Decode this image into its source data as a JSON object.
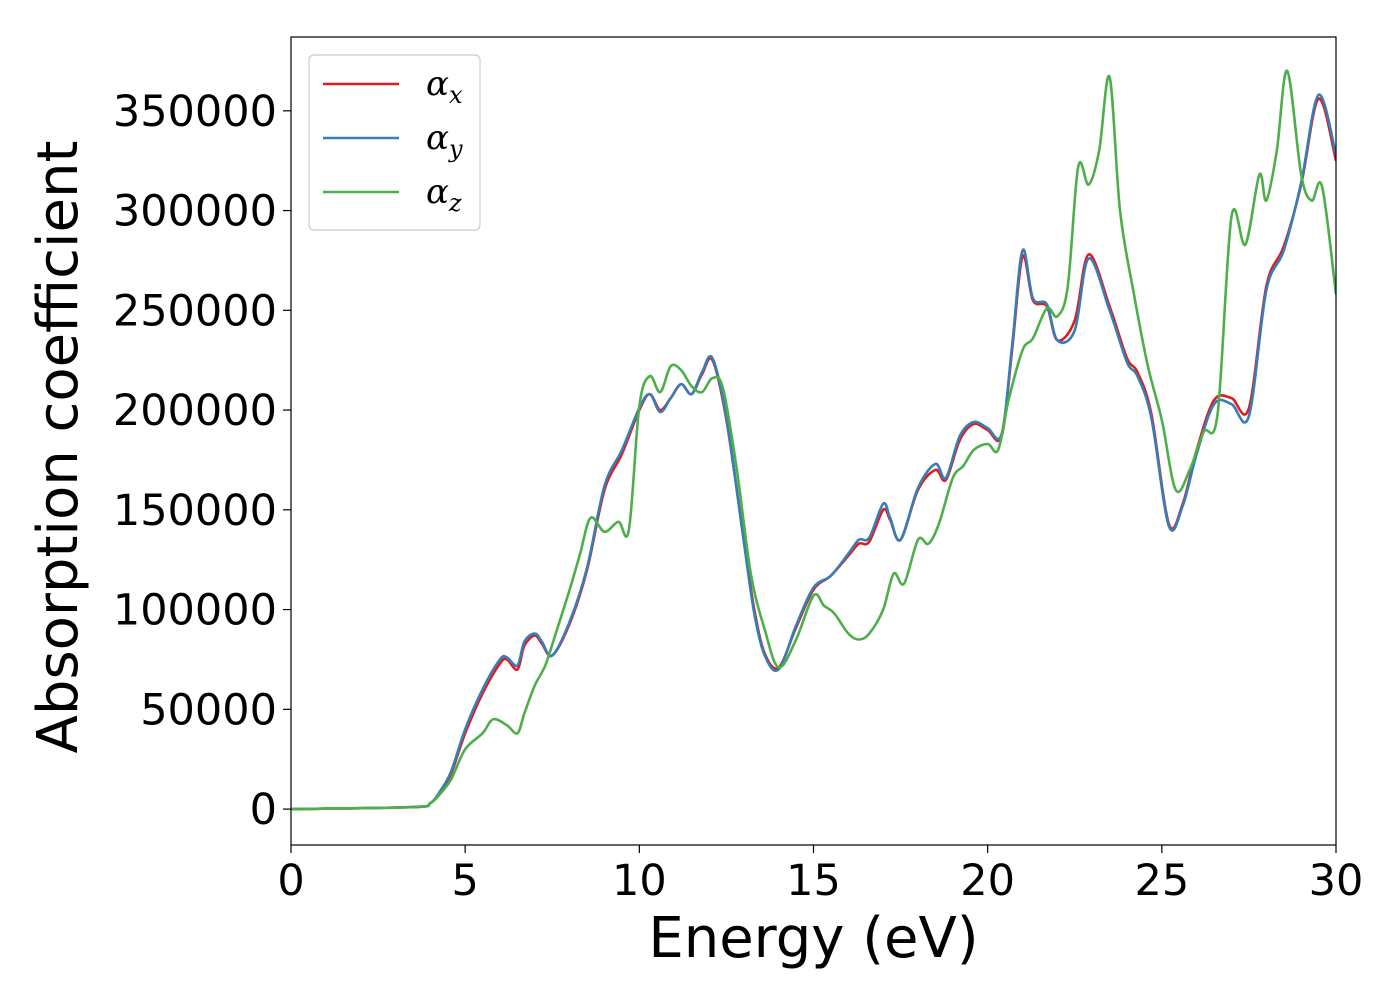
{
  "chart_data": {
    "type": "line",
    "title": "",
    "xlabel": "Energy (eV)",
    "ylabel": "Absorption coefficient",
    "xlim": [
      0,
      30
    ],
    "ylim": [
      -18000,
      387000
    ],
    "xticks": [
      0,
      5,
      10,
      15,
      20,
      25,
      30
    ],
    "xtick_labels": [
      "0",
      "5",
      "10",
      "15",
      "20",
      "25",
      "30"
    ],
    "yticks": [
      0,
      50000,
      100000,
      150000,
      200000,
      250000,
      300000,
      350000
    ],
    "ytick_labels": [
      "0",
      "50000",
      "100000",
      "150000",
      "200000",
      "250000",
      "300000",
      "350000"
    ],
    "grid": false,
    "legend_position": "top-left",
    "series": [
      {
        "name": "α_x",
        "label_base": "α",
        "label_sub": "x",
        "color": "#e41a1c",
        "x": [
          0,
          3.5,
          4.0,
          4.3,
          4.6,
          5.0,
          5.5,
          6.0,
          6.2,
          6.5,
          6.7,
          7.0,
          7.2,
          7.5,
          8.0,
          8.5,
          9.0,
          9.5,
          10.0,
          10.3,
          10.6,
          10.9,
          11.2,
          11.5,
          11.8,
          12.1,
          12.5,
          13.0,
          13.3,
          13.6,
          14.0,
          14.5,
          15.0,
          15.5,
          16.0,
          16.3,
          16.6,
          17.0,
          17.2,
          17.5,
          18.0,
          18.5,
          18.8,
          19.2,
          19.6,
          20.0,
          20.4,
          20.7,
          21.0,
          21.3,
          21.7,
          22.0,
          22.5,
          22.9,
          23.5,
          24.0,
          24.3,
          24.7,
          25.2,
          25.6,
          26.0,
          26.5,
          27.0,
          27.5,
          28.0,
          28.5,
          29.0,
          29.5,
          30.0
        ],
        "y": [
          0,
          1000,
          3000,
          9000,
          18000,
          38000,
          58000,
          73000,
          75000,
          70000,
          82000,
          87000,
          83000,
          77000,
          93000,
          120000,
          160000,
          178000,
          200000,
          208000,
          200000,
          206000,
          213000,
          208000,
          218000,
          225000,
          195000,
          135000,
          100000,
          78000,
          71000,
          91000,
          110000,
          117000,
          127000,
          133000,
          134000,
          150000,
          145000,
          135000,
          160000,
          170000,
          165000,
          185000,
          193000,
          190000,
          187000,
          230000,
          277000,
          255000,
          252000,
          235000,
          245000,
          278000,
          252000,
          226000,
          219000,
          198000,
          143000,
          153000,
          180000,
          205000,
          206000,
          201000,
          262000,
          282000,
          313000,
          356000,
          325000
        ]
      },
      {
        "name": "α_y",
        "label_base": "α",
        "label_sub": "y",
        "color": "#377eb8",
        "x": [
          0,
          3.5,
          4.0,
          4.3,
          4.6,
          5.0,
          5.5,
          6.0,
          6.2,
          6.5,
          6.7,
          7.0,
          7.2,
          7.5,
          8.0,
          8.5,
          9.0,
          9.5,
          10.0,
          10.3,
          10.6,
          10.9,
          11.2,
          11.5,
          11.8,
          12.1,
          12.5,
          13.0,
          13.3,
          13.6,
          14.0,
          14.5,
          15.0,
          15.5,
          16.0,
          16.3,
          16.6,
          17.0,
          17.2,
          17.5,
          18.0,
          18.5,
          18.8,
          19.2,
          19.6,
          20.0,
          20.4,
          20.7,
          21.0,
          21.3,
          21.7,
          22.0,
          22.5,
          22.9,
          23.5,
          24.0,
          24.3,
          24.7,
          25.2,
          25.6,
          26.0,
          26.5,
          27.0,
          27.5,
          28.0,
          28.5,
          29.0,
          29.5,
          30.0
        ],
        "y": [
          0,
          1000,
          3000,
          9500,
          19000,
          40000,
          60000,
          75000,
          76000,
          72000,
          84000,
          88000,
          84000,
          77000,
          94000,
          121000,
          162000,
          180000,
          201000,
          208000,
          199000,
          206000,
          213000,
          208000,
          219000,
          226000,
          196000,
          134000,
          98000,
          77000,
          70000,
          92000,
          111000,
          117000,
          128000,
          135000,
          136000,
          153000,
          146000,
          135000,
          161000,
          173000,
          166000,
          187000,
          194000,
          191000,
          188000,
          232000,
          280000,
          256000,
          253000,
          235000,
          240000,
          276000,
          250000,
          224000,
          217000,
          196000,
          142000,
          152000,
          178000,
          203000,
          203000,
          197000,
          260000,
          280000,
          314000,
          358000,
          328000
        ]
      },
      {
        "name": "α_z",
        "label_base": "α",
        "label_sub": "z",
        "color": "#4daf4a",
        "x": [
          0,
          3.5,
          4.0,
          4.3,
          4.6,
          5.0,
          5.5,
          5.8,
          6.2,
          6.5,
          6.7,
          7.0,
          7.3,
          7.6,
          8.0,
          8.3,
          8.6,
          9.0,
          9.4,
          9.7,
          10.0,
          10.3,
          10.6,
          10.9,
          11.2,
          11.5,
          11.8,
          12.1,
          12.4,
          12.8,
          13.2,
          13.6,
          14.0,
          14.5,
          15.0,
          15.3,
          15.6,
          16.0,
          16.3,
          16.6,
          17.0,
          17.3,
          17.6,
          18.0,
          18.3,
          18.6,
          19.0,
          19.3,
          19.6,
          20.0,
          20.3,
          20.6,
          21.0,
          21.3,
          21.7,
          22.0,
          22.3,
          22.6,
          22.9,
          23.2,
          23.5,
          23.8,
          24.2,
          24.6,
          25.0,
          25.4,
          25.8,
          26.2,
          26.6,
          27.0,
          27.4,
          27.8,
          28.0,
          28.3,
          28.6,
          29.0,
          29.3,
          29.6,
          30.0
        ],
        "y": [
          0,
          1000,
          3000,
          8000,
          15000,
          30000,
          38000,
          45000,
          42000,
          38000,
          48000,
          62000,
          72000,
          88000,
          110000,
          128000,
          146000,
          139000,
          144000,
          140000,
          202000,
          217000,
          209000,
          222000,
          220000,
          212000,
          209000,
          216000,
          211000,
          170000,
          118000,
          90000,
          71000,
          85000,
          107000,
          102000,
          98000,
          88000,
          85000,
          88000,
          100000,
          118000,
          113000,
          135000,
          133000,
          143000,
          166000,
          172000,
          180000,
          183000,
          180000,
          205000,
          230000,
          236000,
          251000,
          247000,
          262000,
          322000,
          313000,
          330000,
          367000,
          300000,
          258000,
          222000,
          195000,
          160000,
          170000,
          189000,
          198000,
          297000,
          283000,
          318000,
          305000,
          330000,
          370000,
          318000,
          305000,
          312000,
          258000
        ]
      }
    ]
  }
}
